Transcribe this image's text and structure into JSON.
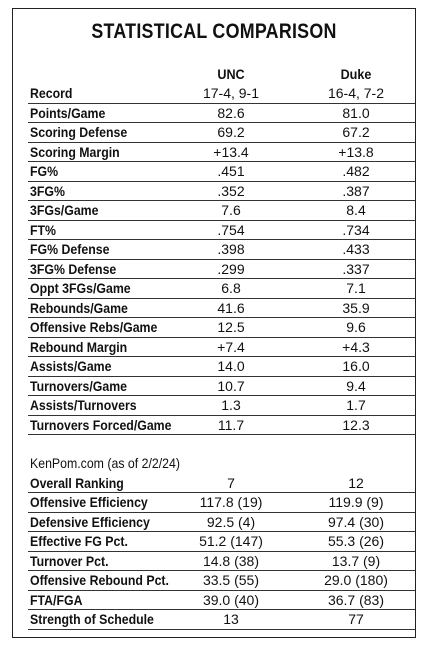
{
  "title": "STATISTICAL COMPARISON",
  "columns": [
    "UNC",
    "Duke"
  ],
  "rows": [
    [
      "Record",
      "17-4, 9-1",
      "16-4, 7-2"
    ],
    [
      "Points/Game",
      "82.6",
      "81.0"
    ],
    [
      "Scoring Defense",
      "69.2",
      "67.2"
    ],
    [
      "Scoring Margin",
      "+13.4",
      "+13.8"
    ],
    [
      "FG%",
      ".451",
      ".482"
    ],
    [
      "3FG%",
      ".352",
      ".387"
    ],
    [
      "3FGs/Game",
      "7.6",
      "8.4"
    ],
    [
      "FT%",
      ".754",
      ".734"
    ],
    [
      "FG% Defense",
      ".398",
      ".433"
    ],
    [
      "3FG% Defense",
      ".299",
      ".337"
    ],
    [
      "Oppt 3FGs/Game",
      "6.8",
      "7.1"
    ],
    [
      "Rebounds/Game",
      "41.6",
      "35.9"
    ],
    [
      "Offensive Rebs/Game",
      "12.5",
      "9.6"
    ],
    [
      "Rebound Margin",
      "+7.4",
      "+4.3"
    ],
    [
      "Assists/Game",
      "14.0",
      "16.0"
    ],
    [
      "Turnovers/Game",
      "10.7",
      "9.4"
    ],
    [
      "Assists/Turnovers",
      "1.3",
      "1.7"
    ],
    [
      "Turnovers Forced/Game",
      "11.7",
      "12.3"
    ]
  ],
  "kenpom": {
    "heading": "KenPom.com (as of 2/2/24)",
    "rows": [
      [
        "Overall Ranking",
        "7",
        "12"
      ],
      [
        "Offensive Efficiency",
        "117.8 (19)",
        "119.9 (9)"
      ],
      [
        "Defensive Efficiency",
        "92.5 (4)",
        "97.4 (30)"
      ],
      [
        "Effective FG Pct.",
        "51.2 (147)",
        "55.3 (26)"
      ],
      [
        "Turnover Pct.",
        "14.8 (38)",
        "13.7 (9)"
      ],
      [
        "Offensive Rebound Pct.",
        "33.5 (55)",
        "29.0 (180)"
      ],
      [
        "FTA/FGA",
        "39.0 (40)",
        "36.7 (83)"
      ],
      [
        "Strength of Schedule",
        "13",
        "77"
      ]
    ]
  }
}
